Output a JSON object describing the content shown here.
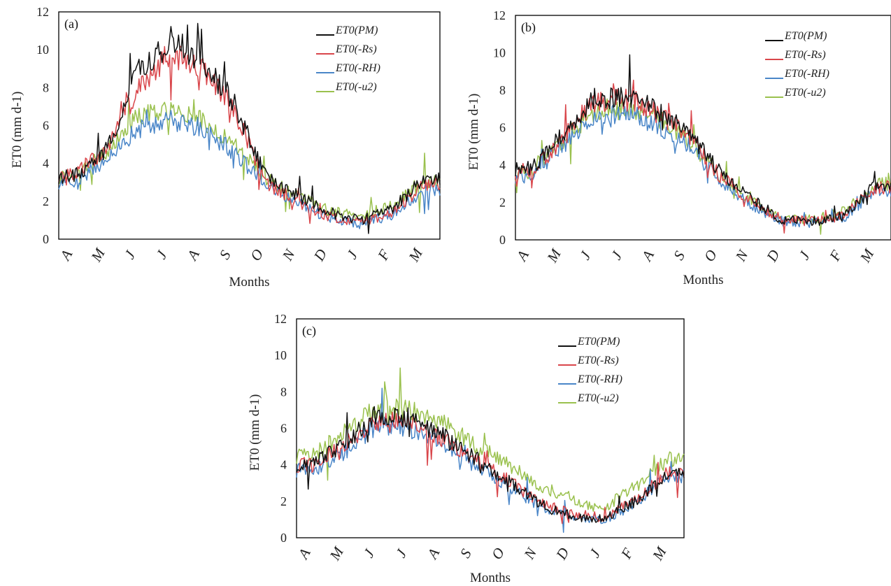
{
  "chart_data": [
    {
      "type": "line",
      "panel": "(a)",
      "xlabel": "Months",
      "ylabel": "ET0 (mm d-1)",
      "ylim": [
        0,
        12
      ],
      "yticks": [
        "0",
        "2",
        "4",
        "6",
        "8",
        "10",
        "12"
      ],
      "categories": [
        "A",
        "M",
        "J",
        "J",
        "A",
        "S",
        "O",
        "N",
        "D",
        "J",
        "F",
        "M"
      ],
      "legend_position": "top-right",
      "series": [
        {
          "name": "ET0(PM)",
          "color": "#111111",
          "values": [
            3.3,
            4.7,
            8.8,
            10.6,
            9.4,
            7.3,
            3.4,
            2.3,
            1.4,
            1.0,
            1.6,
            3.2
          ]
        },
        {
          "name": "ET0(-Rs)",
          "color": "#d9464b",
          "values": [
            3.4,
            4.8,
            8.0,
            9.8,
            9.0,
            6.9,
            3.0,
            2.0,
            1.2,
            0.9,
            1.4,
            2.9
          ]
        },
        {
          "name": "ET0(-RH)",
          "color": "#4a86c8",
          "values": [
            3.0,
            4.2,
            5.9,
            6.3,
            5.9,
            4.6,
            2.9,
            1.9,
            1.1,
            0.8,
            1.3,
            2.6
          ]
        },
        {
          "name": "ET0(-u2)",
          "color": "#9ac14e",
          "values": [
            3.3,
            4.6,
            6.5,
            6.8,
            6.3,
            5.0,
            3.2,
            2.3,
            1.5,
            1.2,
            1.8,
            3.0
          ]
        }
      ]
    },
    {
      "type": "line",
      "panel": "(b)",
      "xlabel": "Months",
      "ylabel": "ET0 (mm d-1)",
      "ylim": [
        0,
        12
      ],
      "yticks": [
        "0",
        "2",
        "4",
        "6",
        "8",
        "10",
        "12"
      ],
      "categories": [
        "A",
        "M",
        "J",
        "J",
        "A",
        "S",
        "O",
        "N",
        "D",
        "J",
        "F",
        "M"
      ],
      "legend_position": "top-right",
      "series": [
        {
          "name": "ET0(PM)",
          "color": "#111111",
          "values": [
            3.8,
            5.6,
            7.6,
            7.6,
            7.0,
            5.8,
            3.7,
            2.2,
            1.1,
            1.0,
            1.3,
            2.9
          ]
        },
        {
          "name": "ET0(-Rs)",
          "color": "#d9464b",
          "values": [
            3.7,
            5.4,
            7.4,
            7.5,
            6.8,
            5.6,
            3.5,
            2.1,
            1.1,
            1.0,
            1.3,
            2.8
          ]
        },
        {
          "name": "ET0(-RH)",
          "color": "#4a86c8",
          "values": [
            3.4,
            5.0,
            6.6,
            6.8,
            6.2,
            5.1,
            3.2,
            1.9,
            1.0,
            0.9,
            1.2,
            2.6
          ]
        },
        {
          "name": "ET0(-u2)",
          "color": "#9ac14e",
          "values": [
            3.6,
            5.3,
            6.9,
            7.2,
            6.5,
            5.4,
            3.5,
            2.1,
            1.1,
            1.1,
            1.5,
            3.0
          ]
        }
      ]
    },
    {
      "type": "line",
      "panel": "(c)",
      "xlabel": "Months",
      "ylabel": "ET0 (mm d-1)",
      "ylim": [
        0,
        12
      ],
      "yticks": [
        "0",
        "2",
        "4",
        "6",
        "8",
        "10",
        "12"
      ],
      "categories": [
        "A",
        "M",
        "J",
        "J",
        "A",
        "S",
        "O",
        "N",
        "D",
        "J",
        "F",
        "M"
      ],
      "legend_position": "top-right",
      "series": [
        {
          "name": "ET0(PM)",
          "color": "#111111",
          "values": [
            4.0,
            5.2,
            6.8,
            6.5,
            5.6,
            4.4,
            3.2,
            1.9,
            1.2,
            1.0,
            2.0,
            3.6
          ]
        },
        {
          "name": "ET0(-Rs)",
          "color": "#d9464b",
          "values": [
            4.0,
            5.1,
            6.5,
            6.3,
            5.4,
            4.3,
            3.2,
            2.0,
            1.3,
            1.1,
            2.1,
            3.6
          ]
        },
        {
          "name": "ET0(-RH)",
          "color": "#4a86c8",
          "values": [
            3.7,
            4.7,
            6.2,
            6.0,
            5.1,
            4.0,
            2.9,
            1.8,
            1.1,
            0.9,
            1.9,
            3.4
          ]
        },
        {
          "name": "ET0(-u2)",
          "color": "#9ac14e",
          "values": [
            4.5,
            5.8,
            7.1,
            7.0,
            6.4,
            5.1,
            4.1,
            2.9,
            2.1,
            1.6,
            2.8,
            4.3
          ]
        }
      ]
    }
  ]
}
